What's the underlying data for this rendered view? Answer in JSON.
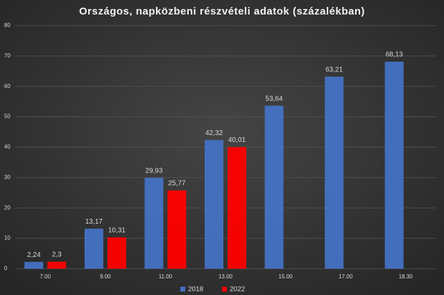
{
  "chart_data": {
    "type": "bar",
    "title": "Országos, napközbeni részvételi adatok (százalékban)",
    "categories": [
      "7.00",
      "9.00",
      "11.00",
      "13.00",
      "15.00",
      "17.00",
      "18.30"
    ],
    "series": [
      {
        "name": "2018",
        "color": "#4472c4",
        "values": [
          2.24,
          13.17,
          29.93,
          42.32,
          53.64,
          63.21,
          68.13
        ],
        "value_labels": [
          "2,24",
          "13,17",
          "29,93",
          "42,32",
          "53,64",
          "63,21",
          "68,13"
        ]
      },
      {
        "name": "2022",
        "color": "#ff0000",
        "values": [
          2.3,
          10.31,
          25.77,
          40.01,
          null,
          null,
          null
        ],
        "value_labels": [
          "2,3",
          "10,31",
          "25,77",
          "40,01",
          null,
          null,
          null
        ]
      }
    ],
    "ylim": [
      0,
      80
    ],
    "yticks": [
      0,
      10,
      20,
      30,
      40,
      50,
      60,
      70,
      80
    ],
    "grid": true,
    "legend": "bottom"
  }
}
